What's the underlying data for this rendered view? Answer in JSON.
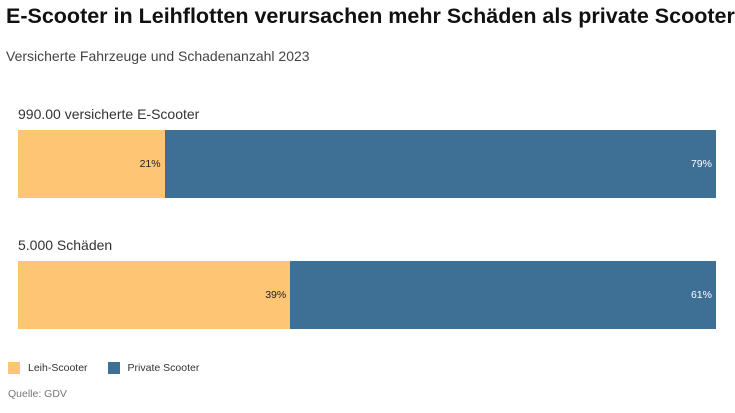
{
  "chart_data": {
    "type": "bar",
    "orientation": "horizontal",
    "stacked": "100%",
    "title": "E-Scooter in Leihflotten verursachen mehr Schäden als private Scooter",
    "subtitle": "Versicherte Fahrzeuge und Schadenanzahl 2023",
    "categories": [
      "990.00 versicherte E-Scooter",
      "5.000 Schäden"
    ],
    "series": [
      {
        "name": "Leih-Scooter",
        "values": [
          21,
          39
        ],
        "labels": [
          "21%",
          "39%"
        ],
        "color": "#fdc574"
      },
      {
        "name": "Private Scooter",
        "values": [
          79,
          61
        ],
        "labels": [
          "79%",
          "61%"
        ],
        "color": "#3e6f95"
      }
    ],
    "legend": "bottom-left",
    "grid": false,
    "source": "Quelle: GDV"
  }
}
